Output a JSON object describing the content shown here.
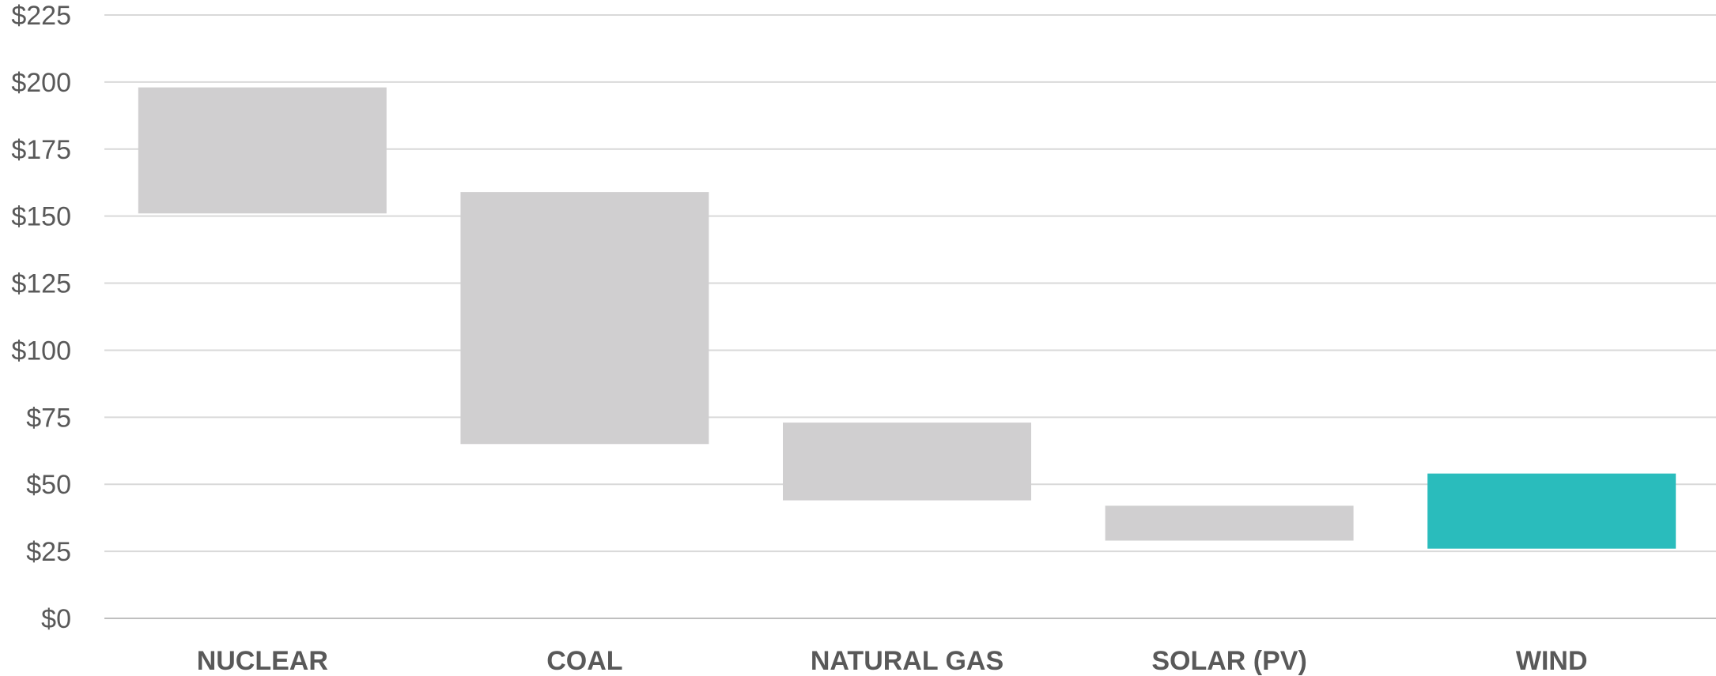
{
  "chart_data": {
    "type": "bar",
    "subtype": "floating-range",
    "categories": [
      "NUCLEAR",
      "COAL",
      "NATURAL GAS",
      "SOLAR (PV)",
      "WIND"
    ],
    "series": [
      {
        "ranges": [
          [
            151,
            198
          ],
          [
            65,
            159
          ],
          [
            44,
            73
          ],
          [
            29,
            42
          ],
          [
            26,
            54
          ]
        ]
      }
    ],
    "colors": {
      "default": "#d0cfd0",
      "highlight": "#2abcbc",
      "highlight_category": "WIND"
    },
    "ylim": [
      0,
      225
    ],
    "yticks": [
      "$0",
      "$25",
      "$50",
      "$75",
      "$100",
      "$125",
      "$150",
      "$175",
      "$200",
      "$225"
    ],
    "ytick_values": [
      0,
      25,
      50,
      75,
      100,
      125,
      150,
      175,
      200,
      225
    ],
    "grid": true,
    "legend": "none",
    "title": "",
    "xlabel": "",
    "ylabel": ""
  }
}
